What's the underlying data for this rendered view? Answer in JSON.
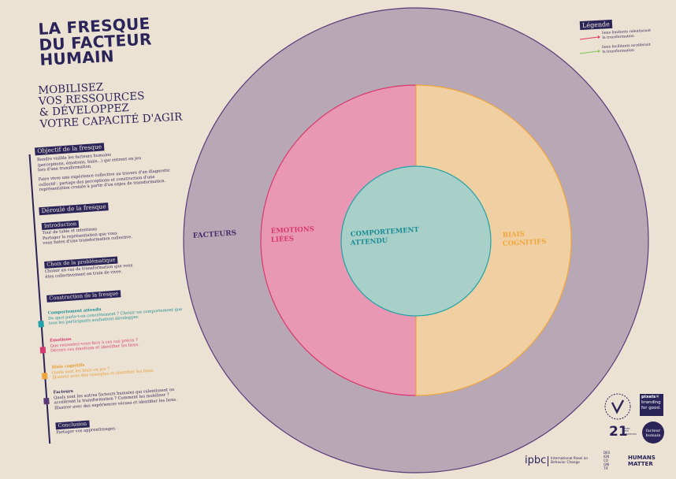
{
  "title": {
    "line1": "LA FRESQUE",
    "line2": "DU FACTEUR",
    "line3": "HUMAIN"
  },
  "subtitle": {
    "line1": "MOBILISEZ",
    "line2": "VOS RESSOURCES",
    "line3": "& DÉVELOPPEZ",
    "line4": "VOTRE CAPACITÉ D'AGIR"
  },
  "objectif": {
    "heading": "Objectif de la fresque",
    "p1": [
      "Rendre visible les facteurs humains",
      "(perceptions, émotions, biais...) qui entrent en jeu",
      "lors d'une transformation."
    ],
    "p2": [
      "Faire vivre une expérience collective au travers d'un diagnostic",
      "collectif : partage des perceptions et construction d'une",
      "représentation croisée à partir d'un enjeu de transformation."
    ]
  },
  "deroule": {
    "heading": "Déroulé de la fresque",
    "introduction": {
      "label": "Introduction",
      "lines": [
        "Tour de table et intentions",
        "Partager la représentation que vous",
        "vous faites d'une transformation collective."
      ]
    },
    "choix": {
      "label": "Choix de la problématique",
      "lines": [
        "Choisir un cas de transformation que vous",
        "êtes collectivement en train de vivre."
      ]
    },
    "construction": {
      "label": "Construction de la fresque",
      "steps": [
        {
          "num": "1",
          "title": "Comportement attendu",
          "lines": [
            "De quoi parle-t-on concrètement ? Choisir un comportement que",
            "tous les participants souhaitent développer."
          ],
          "color": "#1fa3a8"
        },
        {
          "num": "2",
          "title": "Émotions",
          "lines": [
            "Que ressentez-vous face à ces cas précis ?",
            "Décrire ces émotions et identifier les liens."
          ],
          "color": "#d9386e"
        },
        {
          "num": "3",
          "title": "Biais cognitifs",
          "lines": [
            "Quels sont les biais en jeu ?",
            "Illustrer avec des exemples et identifier les liens."
          ],
          "color": "#f1a63b"
        },
        {
          "num": "4",
          "title": "Facteurs",
          "lines": [
            "Quels sont les autres facteurs humains qui ralentissent ou",
            "accélèrent la transformation ? Comment les mobiliser ?",
            "Illustrer avec des expériences vécues et identifier les liens."
          ],
          "color": "#5a3a7a"
        }
      ]
    },
    "conclusion": {
      "label": "Conclusion",
      "lines": [
        "Partager vos apprentissages."
      ]
    }
  },
  "diagram": {
    "outer_label": "FACTEURS",
    "emotions_label": {
      "l1": "ÉMOTIONS",
      "l2": "LIÉES"
    },
    "biais_label": {
      "l1": "BIAIS",
      "l2": "COGNITIFS"
    },
    "center_label": {
      "l1": "COMPORTEMENT",
      "l2": "ATTENDU"
    },
    "colors": {
      "outer": "#b8a7b4",
      "emotions": "#e898b2",
      "biais": "#f0d0a2",
      "center": "#a9cfc9",
      "outline": "#5a3a7a"
    }
  },
  "legend": {
    "title": "Légende",
    "items": [
      {
        "lines": [
          "liens limitants ralentissant",
          "la transformation"
        ],
        "color": "#e0385a"
      },
      {
        "lines": [
          "liens facilitants accélérant",
          "la transformation"
        ],
        "color": "#7fc25a"
      }
    ]
  },
  "logos": {
    "pixels": {
      "l1": "pixels✕",
      "l2": "branding",
      "l3": "for good."
    },
    "ipbc": {
      "name": "ipbc",
      "l1": "International Panel on",
      "l2": "Behavior Change"
    },
    "num21": {
      "big": "21",
      "small": "PARC DES GIVERNES"
    },
    "design": [
      "DES",
      "IGN",
      "CO",
      "GNI",
      "TIF"
    ],
    "humans": {
      "l1": "HUMANS",
      "l2": "MATTER"
    },
    "facteur": {
      "l1": "facteur",
      "l2": "humain"
    }
  }
}
